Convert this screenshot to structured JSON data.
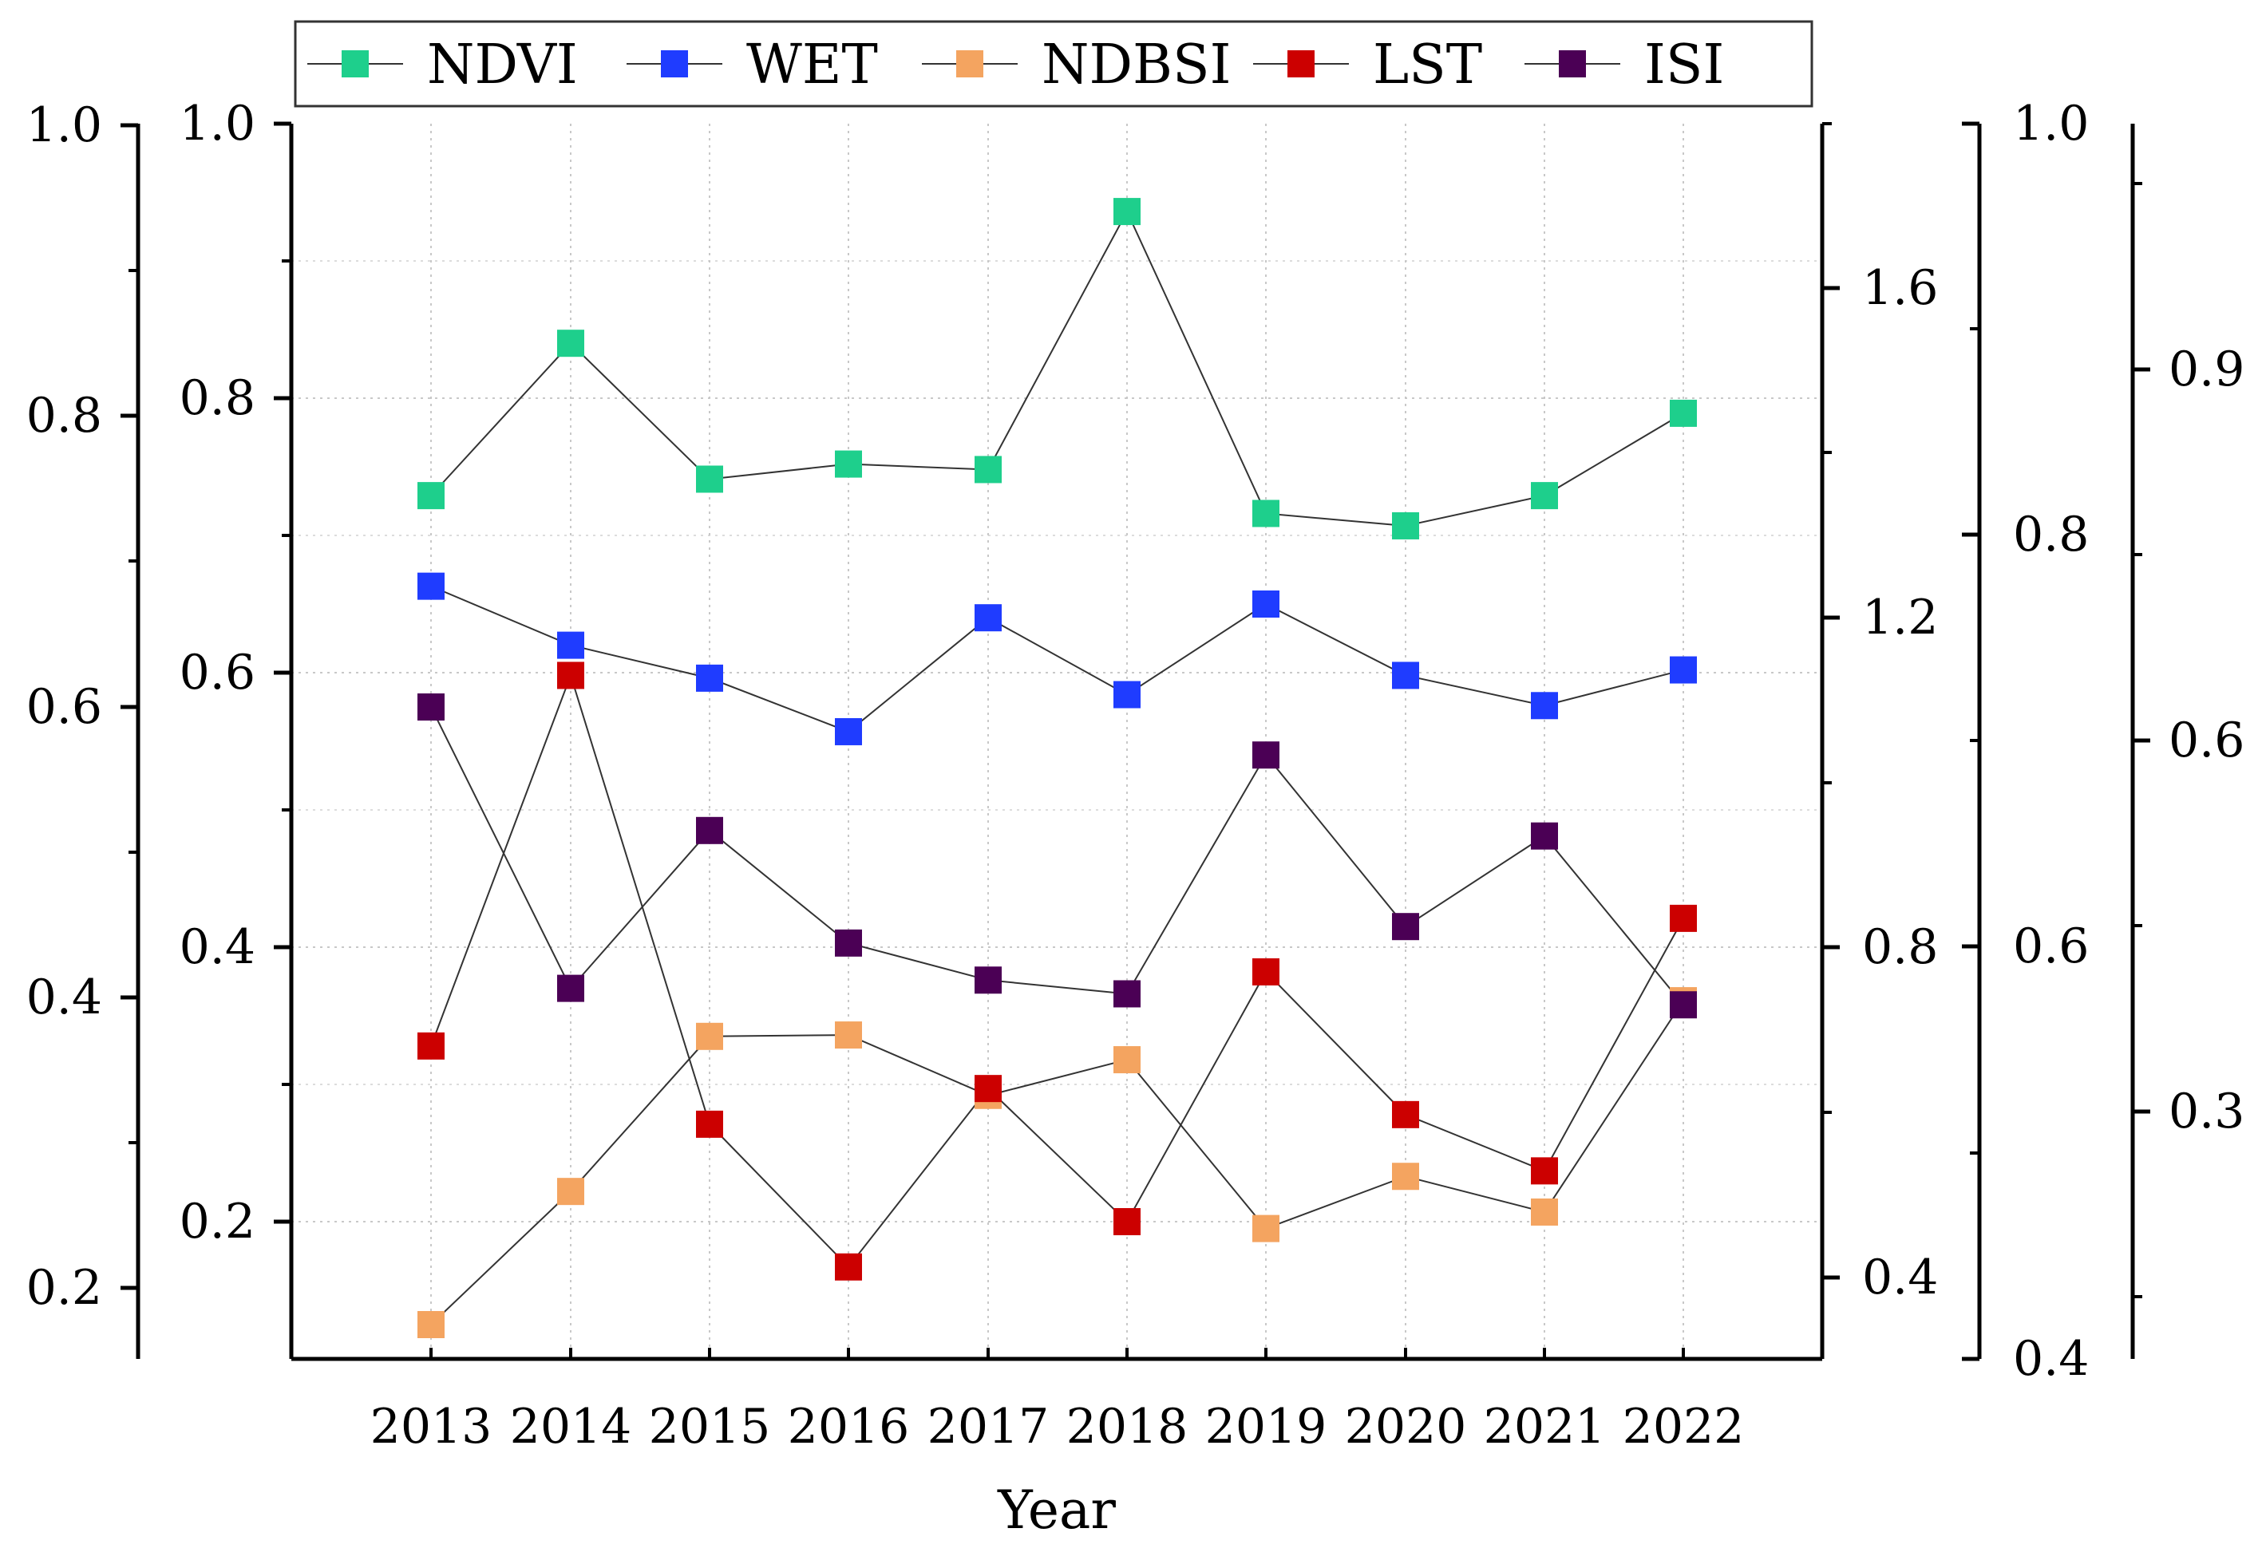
{
  "chart_data": {
    "type": "line",
    "xlabel": "Year",
    "categories": [
      "2013",
      "2014",
      "2015",
      "2016",
      "2017",
      "2018",
      "2019",
      "2020",
      "2021",
      "2022"
    ],
    "series": [
      {
        "name": "NDVI",
        "color": "#1ecf8c",
        "axis": "inner-left",
        "values": [
          0.729,
          0.84,
          0.741,
          0.752,
          0.748,
          0.936,
          0.716,
          0.707,
          0.729,
          0.789
        ]
      },
      {
        "name": "WET",
        "color": "#1f3cff",
        "axis": "inner-left",
        "values": [
          0.663,
          0.62,
          0.596,
          0.557,
          0.64,
          0.584,
          0.65,
          0.598,
          0.576,
          0.602
        ]
      },
      {
        "name": "NDBSI",
        "color": "#f4a460",
        "axis": "inner-left",
        "values": [
          0.125,
          0.222,
          0.335,
          0.336,
          0.292,
          0.318,
          0.195,
          0.233,
          0.207,
          0.361
        ]
      },
      {
        "name": "LST",
        "color": "#cc0000",
        "axis": "inner-left",
        "values": [
          0.328,
          0.598,
          0.271,
          0.167,
          0.297,
          0.2,
          0.382,
          0.278,
          0.237,
          0.421
        ]
      },
      {
        "name": "ISI",
        "color": "#4b0055",
        "axis": "inner-left",
        "values": [
          0.575,
          0.37,
          0.485,
          0.403,
          0.376,
          0.366,
          0.54,
          0.415,
          0.481,
          0.358
        ]
      }
    ],
    "axes": {
      "outer_left": {
        "ticks": [
          "0.2",
          "0.4",
          "0.6",
          "0.8",
          "1.0"
        ]
      },
      "inner_left": {
        "ticks": [
          "0.2",
          "0.4",
          "0.6",
          "0.8",
          "1.0"
        ],
        "ylim": [
          0.1,
          1.0
        ]
      },
      "right_1": {
        "ticks": [
          "0.4",
          "0.8",
          "1.2",
          "1.6"
        ]
      },
      "right_2": {
        "ticks": [
          "0.4",
          "0.6",
          "0.8",
          "1.0"
        ]
      },
      "right_3": {
        "ticks": [
          "0.3",
          "0.6",
          "0.9"
        ]
      }
    },
    "grid": true,
    "legend_position": "top"
  }
}
